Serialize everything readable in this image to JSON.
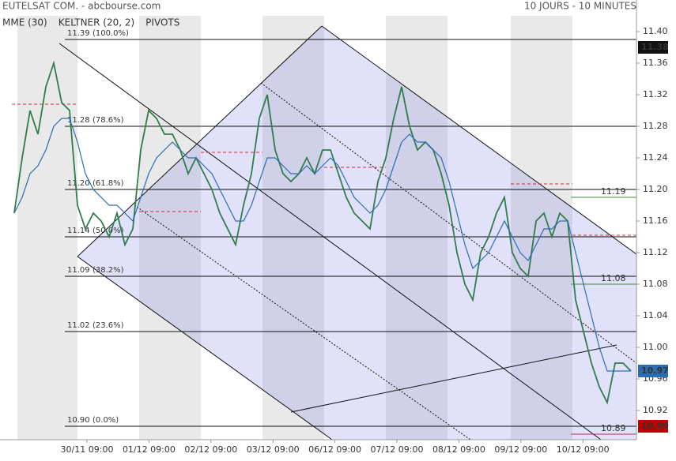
{
  "chart_data": {
    "type": "line",
    "title": "EUTELSAT COM. - abcbourse.com",
    "subtitle": "10 JOURS - 10 MINUTES",
    "indicators": [
      {
        "name": "MME (30)",
        "color": "#2a6db5"
      },
      {
        "name": "KELTNER (20, 2)",
        "color": "#3c8a3c"
      },
      {
        "name": "PIVOTS",
        "color": "#666666"
      }
    ],
    "x_labels": [
      "30/11 09:00",
      "01/12 09:00",
      "02/12 09:00",
      "03/12 09:00",
      "06/12 09:00",
      "07/12 09:00",
      "08/12 09:00",
      "09/12 09:00",
      "10/12 09:00"
    ],
    "series": [
      {
        "name": "Cours",
        "color": "#2f7d4a",
        "values": [
          11.17,
          11.24,
          11.3,
          11.27,
          11.33,
          11.36,
          11.31,
          11.3,
          11.18,
          11.15,
          11.17,
          11.16,
          11.14,
          11.17,
          11.13,
          11.15,
          11.25,
          11.3,
          11.29,
          11.27,
          11.27,
          11.25,
          11.22,
          11.24,
          11.22,
          11.2,
          11.17,
          11.15,
          11.13,
          11.18,
          11.22,
          11.29,
          11.32,
          11.25,
          11.22,
          11.21,
          11.22,
          11.24,
          11.22,
          11.25,
          11.25,
          11.22,
          11.19,
          11.17,
          11.16,
          11.15,
          11.21,
          11.24,
          11.29,
          11.33,
          11.28,
          11.25,
          11.26,
          11.25,
          11.22,
          11.18,
          11.12,
          11.08,
          11.06,
          11.12,
          11.14,
          11.17,
          11.19,
          11.12,
          11.1,
          11.09,
          11.16,
          11.17,
          11.14,
          11.17,
          11.16,
          11.06,
          11.02,
          10.98,
          10.95,
          10.93,
          10.98,
          10.98,
          10.97
        ]
      },
      {
        "name": "MME (30)",
        "color": "#2a6db5",
        "values": [
          11.17,
          11.19,
          11.22,
          11.23,
          11.25,
          11.28,
          11.29,
          11.29,
          11.26,
          11.22,
          11.2,
          11.19,
          11.18,
          11.18,
          11.17,
          11.16,
          11.19,
          11.22,
          11.24,
          11.25,
          11.26,
          11.25,
          11.24,
          11.24,
          11.23,
          11.22,
          11.2,
          11.18,
          11.16,
          11.16,
          11.18,
          11.21,
          11.24,
          11.24,
          11.23,
          11.22,
          11.22,
          11.23,
          11.22,
          11.23,
          11.24,
          11.23,
          11.21,
          11.19,
          11.18,
          11.17,
          11.18,
          11.2,
          11.23,
          11.26,
          11.27,
          11.26,
          11.26,
          11.25,
          11.24,
          11.21,
          11.17,
          11.13,
          11.1,
          11.11,
          11.12,
          11.14,
          11.16,
          11.14,
          11.12,
          11.11,
          11.13,
          11.15,
          11.15,
          11.16,
          11.16,
          11.12,
          11.08,
          11.04,
          11.0,
          10.97,
          10.97,
          10.97,
          10.97
        ]
      }
    ],
    "ylim": [
      10.883,
      11.42
    ],
    "yticks": [
      10.92,
      10.96,
      {
        "value": 11.0,
        "label": "11.00"
      },
      11.04,
      11.08,
      11.12,
      11.16,
      {
        "value": 11.2,
        "label": "11.20"
      },
      11.24,
      11.28,
      11.32,
      11.36,
      {
        "value": 11.4,
        "label": "11.40"
      }
    ],
    "fib_levels": [
      {
        "value": 11.39,
        "price": "11.39",
        "pct": "(100.0%)"
      },
      {
        "value": 11.28,
        "price": "11.28",
        "pct": "(78.6%)"
      },
      {
        "value": 11.2,
        "price": "11.20",
        "pct": "(61.8%)"
      },
      {
        "value": 11.14,
        "price": "11.14",
        "pct": "(50.0%)"
      },
      {
        "value": 11.09,
        "price": "11.09",
        "pct": "(38.2%)"
      },
      {
        "value": 11.02,
        "price": "11.02",
        "pct": "(23.6%)"
      },
      {
        "value": 10.9,
        "price": "10.90",
        "pct": "(0.0%)"
      }
    ],
    "price_tags": [
      {
        "value": 11.38,
        "label": "11.38",
        "color": "#111111",
        "boxed": true
      },
      {
        "value": 11.19,
        "label": "11.19",
        "color": "#3c8a3c",
        "boxed": false
      },
      {
        "value": 11.08,
        "label": "11.08",
        "color": "#3c8a3c",
        "boxed": false
      },
      {
        "value": 10.97,
        "label": "10.97",
        "color": "#2a6db5",
        "boxed": true
      },
      {
        "value": 10.9,
        "label": "10.90",
        "color": "#c00000",
        "boxed": true
      },
      {
        "value": 10.89,
        "label": "10.89",
        "color": "#c03050",
        "boxed": false
      }
    ]
  }
}
